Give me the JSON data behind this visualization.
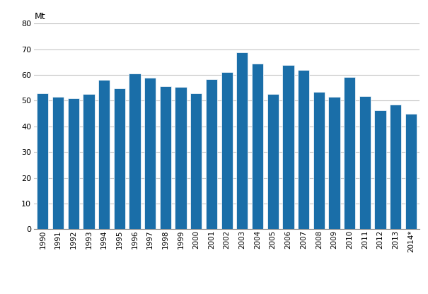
{
  "categories": [
    "1990",
    "1991",
    "1992",
    "1993",
    "1994",
    "1995",
    "1996",
    "1997",
    "1998",
    "1999",
    "2000",
    "2001",
    "2002",
    "2003",
    "2004",
    "2005",
    "2006",
    "2007",
    "2008",
    "2009",
    "2010",
    "2011",
    "2012",
    "2013",
    "2014*"
  ],
  "values": [
    53.0,
    51.5,
    51.0,
    52.5,
    58.0,
    54.8,
    60.5,
    58.8,
    55.5,
    55.3,
    53.0,
    58.5,
    61.0,
    68.7,
    64.5,
    52.5,
    64.0,
    62.0,
    53.3,
    51.5,
    59.2,
    51.8,
    46.3,
    48.5,
    45.0
  ],
  "bar_color": "#1a6ea8",
  "ylabel": "Mt",
  "ylim": [
    0,
    80
  ],
  "yticks": [
    0,
    10,
    20,
    30,
    40,
    50,
    60,
    70,
    80
  ],
  "grid_color": "#c8c8c8",
  "background_color": "#ffffff",
  "bar_width": 0.75
}
